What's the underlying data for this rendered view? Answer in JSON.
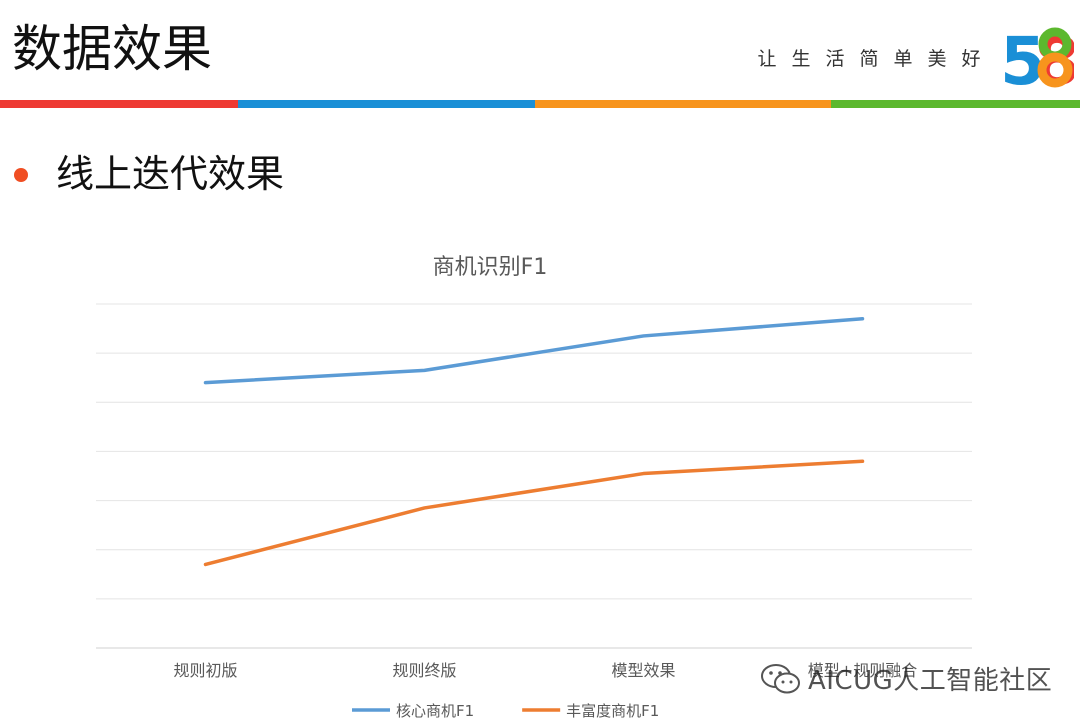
{
  "header": {
    "title": "数据效果",
    "slogan": [
      "让",
      "生",
      "活",
      "简",
      "单",
      "美",
      "好"
    ],
    "logo_text": [
      "5",
      "8"
    ],
    "bar_colors": [
      "#ee3a33",
      "#1a8fd6",
      "#f7941d",
      "#5cb82e"
    ]
  },
  "section": {
    "title": "线上迭代效果",
    "bullet_color": "#f04e23"
  },
  "watermark": {
    "text": "AICUG人工智能社区"
  },
  "chart_data": {
    "type": "line",
    "title": "商机识别F1",
    "categories": [
      "规则初版",
      "规则终版",
      "模型效果",
      "模型+规则融合"
    ],
    "series": [
      {
        "name": "核心商机F1",
        "color": "#5b9bd5",
        "values": [
          5.4,
          5.65,
          6.35,
          6.7
        ]
      },
      {
        "name": "丰富度商机F1",
        "color": "#ed7d31",
        "values": [
          1.7,
          2.85,
          3.55,
          3.8
        ]
      }
    ],
    "ylim": [
      0,
      7
    ],
    "grid": true,
    "legend": "bottom"
  }
}
